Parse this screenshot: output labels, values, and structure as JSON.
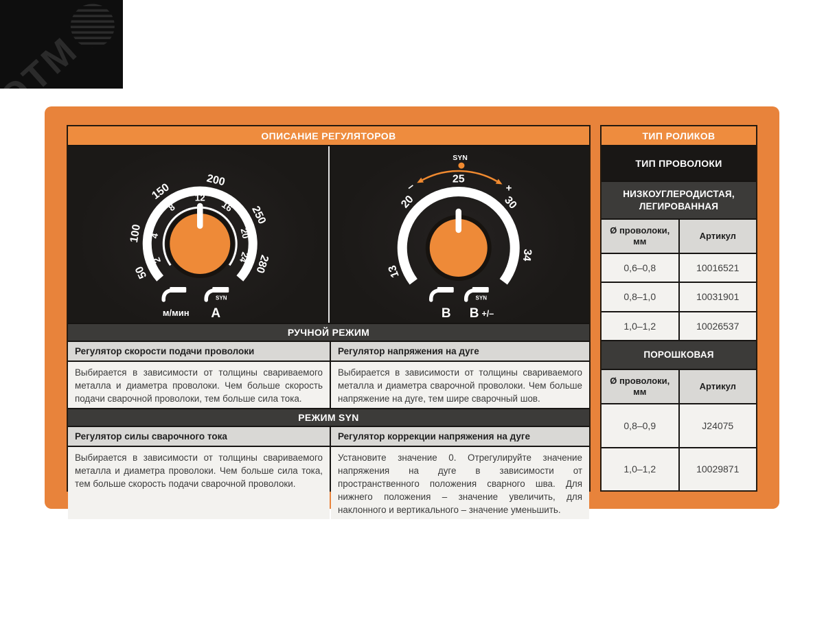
{
  "colors": {
    "panel_orange": "#E8833B",
    "header_orange": "#EE8C3E",
    "knob_orange": "#EE8A38",
    "syn_orange": "#F08A30",
    "bar_dark": "#3C3B39",
    "area_black": "#1B1917",
    "cell_light": "#F3F2EF",
    "cell_gray": "#D9D8D5"
  },
  "watermark": {
    "brand": "ЭТМ"
  },
  "main": {
    "title": "ОПИСАНИЕ РЕГУЛЯТОРОВ",
    "knob_left": {
      "inner_scale": [
        "2",
        "4",
        "8",
        "12",
        "16",
        "20",
        "24"
      ],
      "outer_scale": [
        "50",
        "100",
        "150",
        "200",
        "250",
        "280"
      ],
      "icons": [
        {
          "label": "м/мин",
          "syn": ""
        },
        {
          "label": "A",
          "syn": "SYN"
        }
      ]
    },
    "knob_right": {
      "scale": [
        "13",
        "20",
        "25",
        "30",
        "34"
      ],
      "syn_marker": "SYN",
      "minus": "–",
      "plus": "+",
      "icons": [
        {
          "label": "B",
          "syn": ""
        },
        {
          "label": "B",
          "suffix": "+/–",
          "syn": "SYN"
        }
      ]
    },
    "sections": [
      {
        "header": "РУЧНОЙ РЕЖИМ",
        "columns": [
          {
            "title": "Регулятор скорости подачи проволоки",
            "body": "Выбирается в зависимости от толщины свариваемого металла и диаметра проволоки. Чем больше скорость подачи сварочной проволоки, тем больше сила тока."
          },
          {
            "title": "Регулятор напряжения на дуге",
            "body": "Выбирается в зависимости от толщины свариваемого металла и диаметра сварочной проволоки. Чем больше напряжение на дуге, тем шире сварочный шов."
          }
        ]
      },
      {
        "header": "РЕЖИМ SYN",
        "columns": [
          {
            "title": "Регулятор силы сварочного тока",
            "body": "Выбирается в зависимости от толщины свариваемого металла и диаметра проволоки. Чем больше сила тока, тем больше скорость подачи сварочной проволоки."
          },
          {
            "title": "Регулятор коррекции напряжения на дуге",
            "body": "Установите значение 0. Отрегулируйте значение напряжения на дуге в зависимости от пространственного положения сварного шва. Для нижнего положения – значение увеличить, для наклонного и вертикального – значение уменьшить."
          }
        ]
      }
    ]
  },
  "sidebar": {
    "title": "ТИП РОЛИКОВ",
    "wire_type_header": "ТИП ПРОВОЛОКИ",
    "groups": [
      {
        "name": "НИЗКОУГЛЕРОДИСТАЯ, ЛЕГИРОВАННАЯ",
        "col1": "Ø проволоки, мм",
        "col2": "Артикул",
        "rows": [
          [
            "0,6–0,8",
            "10016521"
          ],
          [
            "0,8–1,0",
            "10031901"
          ],
          [
            "1,0–1,2",
            "10026537"
          ]
        ]
      },
      {
        "name": "ПОРОШКОВАЯ",
        "col1": "Ø проволоки, мм",
        "col2": "Артикул",
        "rows": [
          [
            "0,8–0,9",
            "J24075"
          ],
          [
            "1,0–1,2",
            "10029871"
          ]
        ]
      }
    ]
  }
}
